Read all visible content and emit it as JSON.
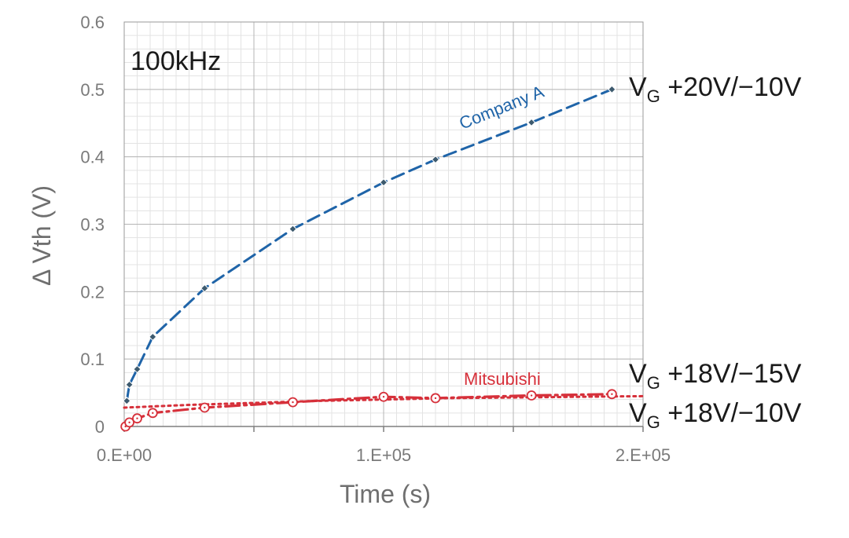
{
  "chart_data": {
    "type": "line",
    "annotation_freq": "100kHz",
    "xlabel": "Time (s)",
    "ylabel": "Δ Vth (V)",
    "xlim": [
      0,
      200000
    ],
    "ylim": [
      0,
      0.6
    ],
    "x_ticks": [
      0,
      100000,
      200000
    ],
    "x_tick_labels": [
      "0.E+00",
      "1.E+05",
      "2.E+05"
    ],
    "y_ticks": [
      0,
      0.1,
      0.2,
      0.3,
      0.4,
      0.5,
      0.6
    ],
    "y_tick_labels": [
      "0",
      "0.1",
      "0.2",
      "0.3",
      "0.4",
      "0.5",
      "0.6"
    ],
    "grid": true,
    "series": [
      {
        "name": "Company A",
        "condition": "VG +20V/−10V",
        "condition_main": "V",
        "condition_sub": "G",
        "condition_rest": " +20V/−10V",
        "color": "#1f64a8",
        "marker": "diamond",
        "x": [
          1000,
          2000,
          5000,
          11000,
          31000,
          65000,
          100000,
          120000,
          157000,
          188000
        ],
        "y": [
          0.038,
          0.062,
          0.085,
          0.133,
          0.205,
          0.293,
          0.362,
          0.396,
          0.451,
          0.5
        ]
      },
      {
        "name": "Mitsubishi",
        "condition": "VG +18V/−15V",
        "condition_main": "V",
        "condition_sub": "G",
        "condition_rest": " +18V/−15V",
        "color": "#d6303a",
        "marker": "none",
        "x": [
          0,
          25000,
          50000,
          75000,
          100000,
          125000,
          150000,
          175000,
          200000
        ],
        "y": [
          0.028,
          0.032,
          0.035,
          0.038,
          0.04,
          0.042,
          0.043,
          0.044,
          0.045
        ]
      },
      {
        "name": "Mitsubishi",
        "condition": "VG +18V/−10V",
        "condition_main": "V",
        "condition_sub": "G",
        "condition_rest": " +18V/−10V",
        "color": "#d6303a",
        "marker": "circle",
        "x": [
          500,
          2000,
          5000,
          11000,
          31000,
          65000,
          100000,
          120000,
          157000,
          188000
        ],
        "y": [
          0.0,
          0.006,
          0.012,
          0.02,
          0.028,
          0.036,
          0.044,
          0.042,
          0.046,
          0.048
        ]
      }
    ]
  }
}
